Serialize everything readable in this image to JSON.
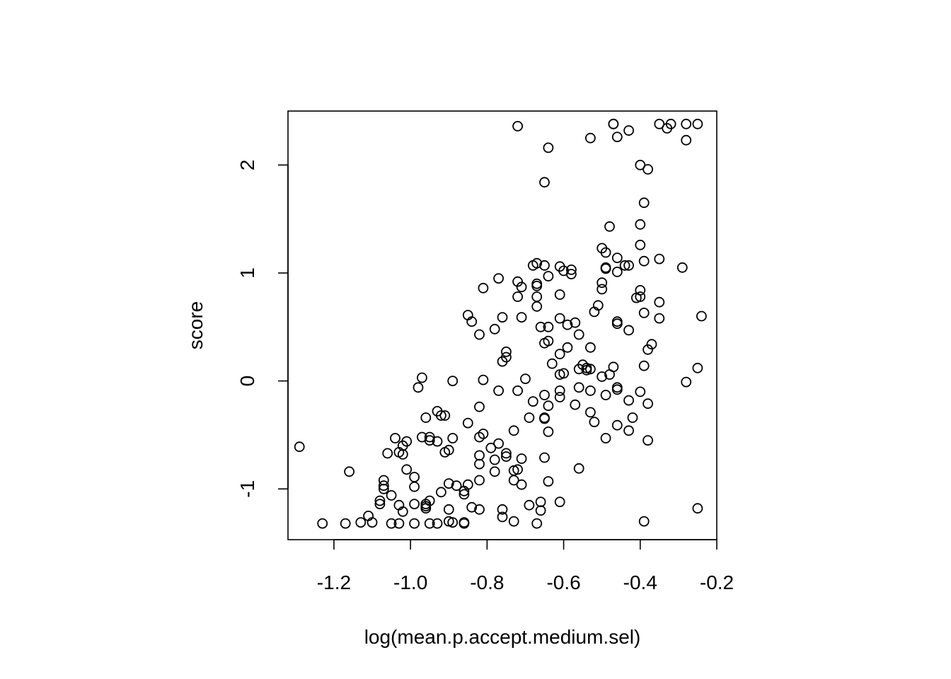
{
  "chart_data": {
    "type": "scatter",
    "title": "",
    "xlabel": "log(mean.p.accept.medium.sel)",
    "ylabel": "score",
    "xlim": [
      -1.32,
      -0.2
    ],
    "ylim": [
      -1.47,
      2.5
    ],
    "x_ticks": [
      -1.2,
      -1.0,
      -0.8,
      -0.6,
      -0.4,
      -0.2
    ],
    "x_tick_labels": [
      "-1.2",
      "-1.0",
      "-0.8",
      "-0.6",
      "-0.4",
      "-0.2"
    ],
    "y_ticks": [
      -1,
      0,
      1,
      2
    ],
    "y_tick_labels": [
      "-1",
      "0",
      "1",
      "2"
    ],
    "grid": false,
    "legend": "none",
    "marker": "open-circle",
    "color": "#000000",
    "points": [
      [
        -1.29,
        -0.61
      ],
      [
        -1.23,
        -1.32
      ],
      [
        -1.17,
        -1.32
      ],
      [
        -1.16,
        -0.84
      ],
      [
        -1.13,
        -1.31
      ],
      [
        -1.11,
        -1.25
      ],
      [
        -1.1,
        -1.31
      ],
      [
        -1.08,
        -1.14
      ],
      [
        -1.08,
        -1.11
      ],
      [
        -1.07,
        -1.0
      ],
      [
        -1.07,
        -0.92
      ],
      [
        -1.07,
        -0.97
      ],
      [
        -1.06,
        -0.67
      ],
      [
        -1.05,
        -1.32
      ],
      [
        -1.05,
        -1.06
      ],
      [
        -1.04,
        -0.53
      ],
      [
        -1.03,
        -0.66
      ],
      [
        -1.03,
        -1.15
      ],
      [
        -1.03,
        -1.32
      ],
      [
        -1.02,
        -0.6
      ],
      [
        -1.02,
        -1.21
      ],
      [
        -1.02,
        -0.68
      ],
      [
        -1.01,
        -0.82
      ],
      [
        -1.01,
        -0.56
      ],
      [
        -0.99,
        -1.32
      ],
      [
        -0.99,
        -0.98
      ],
      [
        -0.99,
        -0.89
      ],
      [
        -0.99,
        -1.14
      ],
      [
        -0.98,
        -0.06
      ],
      [
        -0.97,
        0.03
      ],
      [
        -0.97,
        -0.52
      ],
      [
        -0.96,
        -1.16
      ],
      [
        -0.96,
        -0.34
      ],
      [
        -0.96,
        -1.14
      ],
      [
        -0.96,
        -1.18
      ],
      [
        -0.95,
        -1.11
      ],
      [
        -0.95,
        -0.55
      ],
      [
        -0.95,
        -0.52
      ],
      [
        -0.95,
        -1.32
      ],
      [
        -0.93,
        -0.28
      ],
      [
        -0.93,
        -0.56
      ],
      [
        -0.93,
        -1.32
      ],
      [
        -0.92,
        -1.03
      ],
      [
        -0.92,
        -0.32
      ],
      [
        -0.91,
        -0.32
      ],
      [
        -0.91,
        -0.66
      ],
      [
        -0.9,
        -0.64
      ],
      [
        -0.9,
        -0.95
      ],
      [
        -0.9,
        -1.19
      ],
      [
        -0.9,
        -1.3
      ],
      [
        -0.89,
        -1.31
      ],
      [
        -0.89,
        0.0
      ],
      [
        -0.89,
        -0.53
      ],
      [
        -0.88,
        -0.97
      ],
      [
        -0.86,
        -1.31
      ],
      [
        -0.86,
        -1.32
      ],
      [
        -0.86,
        -1.05
      ],
      [
        -0.86,
        -1.02
      ],
      [
        -0.85,
        0.61
      ],
      [
        -0.85,
        -0.39
      ],
      [
        -0.85,
        -0.96
      ],
      [
        -0.84,
        0.55
      ],
      [
        -0.84,
        -1.17
      ],
      [
        -0.82,
        0.43
      ],
      [
        -0.82,
        -0.24
      ],
      [
        -0.82,
        -0.69
      ],
      [
        -0.82,
        -0.77
      ],
      [
        -0.82,
        -0.52
      ],
      [
        -0.82,
        -0.92
      ],
      [
        -0.82,
        -1.19
      ],
      [
        -0.81,
        -0.49
      ],
      [
        -0.81,
        0.01
      ],
      [
        -0.81,
        0.86
      ],
      [
        -0.79,
        -0.62
      ],
      [
        -0.78,
        0.48
      ],
      [
        -0.78,
        -0.73
      ],
      [
        -0.78,
        -0.84
      ],
      [
        -0.77,
        0.95
      ],
      [
        -0.77,
        -0.09
      ],
      [
        -0.77,
        -0.58
      ],
      [
        -0.76,
        0.59
      ],
      [
        -0.76,
        0.18
      ],
      [
        -0.76,
        -1.19
      ],
      [
        -0.76,
        -1.26
      ],
      [
        -0.75,
        0.22
      ],
      [
        -0.75,
        0.27
      ],
      [
        -0.75,
        -0.67
      ],
      [
        -0.75,
        -0.7
      ],
      [
        -0.73,
        -0.46
      ],
      [
        -0.73,
        -0.83
      ],
      [
        -0.73,
        -0.92
      ],
      [
        -0.73,
        -1.3
      ],
      [
        -0.72,
        0.92
      ],
      [
        -0.72,
        0.78
      ],
      [
        -0.72,
        2.36
      ],
      [
        -0.72,
        -0.82
      ],
      [
        -0.72,
        -0.09
      ],
      [
        -0.71,
        0.87
      ],
      [
        -0.71,
        0.59
      ],
      [
        -0.71,
        -0.96
      ],
      [
        -0.71,
        -0.72
      ],
      [
        -0.7,
        0.02
      ],
      [
        -0.69,
        -0.34
      ],
      [
        -0.69,
        -1.15
      ],
      [
        -0.68,
        1.07
      ],
      [
        -0.68,
        -0.19
      ],
      [
        -0.67,
        1.09
      ],
      [
        -0.67,
        0.88
      ],
      [
        -0.67,
        0.78
      ],
      [
        -0.67,
        0.69
      ],
      [
        -0.67,
        0.9
      ],
      [
        -0.67,
        -1.32
      ],
      [
        -0.66,
        0.5
      ],
      [
        -0.66,
        -1.12
      ],
      [
        -0.66,
        -1.2
      ],
      [
        -0.65,
        1.84
      ],
      [
        -0.65,
        1.07
      ],
      [
        -0.65,
        0.35
      ],
      [
        -0.65,
        -0.13
      ],
      [
        -0.65,
        -0.34
      ],
      [
        -0.65,
        -0.35
      ],
      [
        -0.65,
        -0.71
      ],
      [
        -0.64,
        2.16
      ],
      [
        -0.64,
        0.97
      ],
      [
        -0.64,
        0.5
      ],
      [
        -0.64,
        0.37
      ],
      [
        -0.64,
        -0.23
      ],
      [
        -0.64,
        -0.47
      ],
      [
        -0.64,
        -0.93
      ],
      [
        -0.63,
        0.16
      ],
      [
        -0.61,
        -1.12
      ],
      [
        -0.61,
        1.06
      ],
      [
        -0.61,
        0.8
      ],
      [
        -0.61,
        0.58
      ],
      [
        -0.61,
        0.25
      ],
      [
        -0.61,
        0.06
      ],
      [
        -0.61,
        -0.09
      ],
      [
        -0.61,
        -0.15
      ],
      [
        -0.6,
        1.02
      ],
      [
        -0.6,
        0.07
      ],
      [
        -0.59,
        0.52
      ],
      [
        -0.59,
        0.31
      ],
      [
        -0.58,
        1.03
      ],
      [
        -0.58,
        0.99
      ],
      [
        -0.57,
        0.54
      ],
      [
        -0.57,
        -0.22
      ],
      [
        -0.56,
        0.43
      ],
      [
        -0.56,
        0.11
      ],
      [
        -0.56,
        -0.06
      ],
      [
        -0.56,
        -0.81
      ],
      [
        -0.55,
        0.15
      ],
      [
        -0.54,
        0.12
      ],
      [
        -0.54,
        0.1
      ],
      [
        -0.53,
        2.25
      ],
      [
        -0.53,
        0.31
      ],
      [
        -0.53,
        0.11
      ],
      [
        -0.53,
        -0.09
      ],
      [
        -0.53,
        -0.29
      ],
      [
        -0.52,
        0.64
      ],
      [
        -0.52,
        -0.38
      ],
      [
        -0.51,
        0.7
      ],
      [
        -0.5,
        1.23
      ],
      [
        -0.5,
        0.85
      ],
      [
        -0.5,
        0.91
      ],
      [
        -0.5,
        0.04
      ],
      [
        -0.49,
        1.19
      ],
      [
        -0.49,
        1.04
      ],
      [
        -0.49,
        1.05
      ],
      [
        -0.49,
        -0.13
      ],
      [
        -0.49,
        -0.53
      ],
      [
        -0.48,
        1.43
      ],
      [
        -0.48,
        0.06
      ],
      [
        -0.47,
        2.38
      ],
      [
        -0.47,
        2.38
      ],
      [
        -0.47,
        0.13
      ],
      [
        -0.46,
        2.26
      ],
      [
        -0.46,
        1.14
      ],
      [
        -0.46,
        1.01
      ],
      [
        -0.46,
        0.53
      ],
      [
        -0.46,
        0.55
      ],
      [
        -0.46,
        -0.06
      ],
      [
        -0.46,
        -0.08
      ],
      [
        -0.46,
        -0.41
      ],
      [
        -0.44,
        1.07
      ],
      [
        -0.43,
        1.07
      ],
      [
        -0.43,
        2.32
      ],
      [
        -0.43,
        0.47
      ],
      [
        -0.43,
        -0.18
      ],
      [
        -0.43,
        -0.46
      ],
      [
        -0.42,
        -0.34
      ],
      [
        -0.41,
        0.77
      ],
      [
        -0.4,
        2.0
      ],
      [
        -0.4,
        1.45
      ],
      [
        -0.4,
        1.26
      ],
      [
        -0.4,
        0.84
      ],
      [
        -0.4,
        0.78
      ],
      [
        -0.4,
        -0.1
      ],
      [
        -0.39,
        1.65
      ],
      [
        -0.39,
        1.11
      ],
      [
        -0.39,
        0.63
      ],
      [
        -0.39,
        0.14
      ],
      [
        -0.39,
        -1.3
      ],
      [
        -0.38,
        1.96
      ],
      [
        -0.38,
        0.29
      ],
      [
        -0.38,
        -0.21
      ],
      [
        -0.38,
        -0.55
      ],
      [
        -0.37,
        0.34
      ],
      [
        -0.35,
        2.38
      ],
      [
        -0.35,
        1.13
      ],
      [
        -0.35,
        0.73
      ],
      [
        -0.35,
        0.58
      ],
      [
        -0.33,
        2.34
      ],
      [
        -0.32,
        2.38
      ],
      [
        -0.29,
        1.05
      ],
      [
        -0.28,
        2.23
      ],
      [
        -0.28,
        2.38
      ],
      [
        -0.28,
        -0.01
      ],
      [
        -0.25,
        2.38
      ],
      [
        -0.25,
        0.12
      ],
      [
        -0.25,
        -1.18
      ],
      [
        -0.24,
        0.6
      ]
    ]
  }
}
